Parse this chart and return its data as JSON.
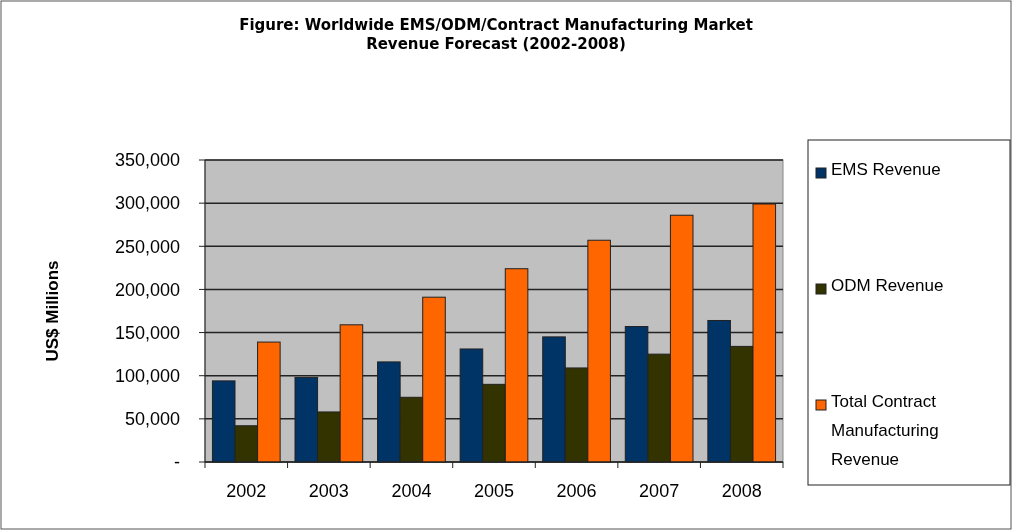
{
  "chart_data": {
    "type": "bar",
    "title": "Figure: Worldwide EMS/ODM/Contract Manufacturing Market\nRevenue Forecast (2002-2008)",
    "ylabel": "US$ Millions",
    "categories": [
      "2002",
      "2003",
      "2004",
      "2005",
      "2006",
      "2007",
      "2008"
    ],
    "series": [
      {
        "name": "EMS Revenue",
        "color": "#003366",
        "values": [
          94000,
          98000,
          116000,
          131000,
          145000,
          157000,
          164000
        ]
      },
      {
        "name": "ODM Revenue",
        "color": "#333300",
        "values": [
          42000,
          58000,
          75000,
          90000,
          109000,
          125000,
          134000
        ]
      },
      {
        "name": "Total Contract Manufacturing Revenue",
        "color": "#ff6600",
        "values": [
          139000,
          159000,
          191000,
          224000,
          257000,
          286000,
          299000
        ]
      }
    ],
    "ylim": [
      0,
      350000
    ],
    "yticks": [
      {
        "value": 0,
        "label": "-"
      },
      {
        "value": 50000,
        "label": "50,000"
      },
      {
        "value": 100000,
        "label": "100,000"
      },
      {
        "value": 150000,
        "label": "150,000"
      },
      {
        "value": 200000,
        "label": "200,000"
      },
      {
        "value": 250000,
        "label": "250,000"
      },
      {
        "value": 300000,
        "label": "300,000"
      },
      {
        "value": 350000,
        "label": "350,000"
      }
    ],
    "grid": "y",
    "legend": "right"
  }
}
